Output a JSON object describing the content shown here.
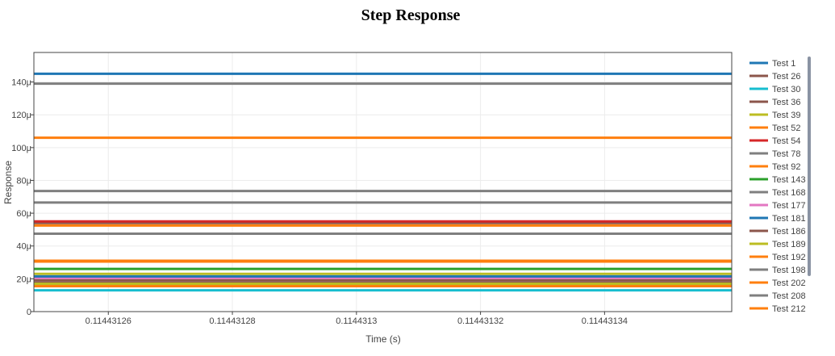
{
  "chart_data": {
    "type": "line",
    "title": "Step Response",
    "xlabel": "Time (s)",
    "ylabel": "Response",
    "xlim": [
      0.114431248,
      0.1144313605
    ],
    "ylim": [
      0,
      0.000158
    ],
    "x_ticks": [
      {
        "value": 0.11443126,
        "label": "0.11443126"
      },
      {
        "value": 0.11443128,
        "label": "0.11443128"
      },
      {
        "value": 0.1144313,
        "label": "0.1144313"
      },
      {
        "value": 0.11443132,
        "label": "0.11443132"
      },
      {
        "value": 0.11443134,
        "label": "0.11443134"
      }
    ],
    "y_ticks": [
      {
        "value": 0,
        "label": "0"
      },
      {
        "value": 2e-05,
        "label": "20μ"
      },
      {
        "value": 4e-05,
        "label": "40μ"
      },
      {
        "value": 6e-05,
        "label": "60μ"
      },
      {
        "value": 8e-05,
        "label": "80μ"
      },
      {
        "value": 0.0001,
        "label": "100μ"
      },
      {
        "value": 0.00012,
        "label": "120μ"
      },
      {
        "value": 0.00014,
        "label": "140μ"
      }
    ],
    "grid": true,
    "legend_position": "right",
    "series": [
      {
        "name": "Test 1",
        "color": "#1f77b4",
        "x": [
          0.114431248,
          0.1144313605
        ],
        "y": [
          0.000145,
          0.000145
        ]
      },
      {
        "name": "Test 26",
        "color": "#8c564b",
        "x": [
          0.114431248,
          0.1144313605
        ],
        "y": [
          1.75e-05,
          1.75e-05
        ]
      },
      {
        "name": "Test 30",
        "color": "#17becf",
        "x": [
          0.114431248,
          0.1144313605
        ],
        "y": [
          1.3e-05,
          1.3e-05
        ]
      },
      {
        "name": "Test 36",
        "color": "#8c564b",
        "x": [
          0.114431248,
          0.1144313605
        ],
        "y": [
          5.4e-05,
          5.4e-05
        ]
      },
      {
        "name": "Test 39",
        "color": "#bcbd22",
        "x": [
          0.114431248,
          0.1144313605
        ],
        "y": [
          2.3e-05,
          2.3e-05
        ]
      },
      {
        "name": "Test 52",
        "color": "#ff7f0e",
        "x": [
          0.114431248,
          0.1144313605
        ],
        "y": [
          1.55e-05,
          1.55e-05
        ]
      },
      {
        "name": "Test 54",
        "color": "#d62728",
        "x": [
          0.114431248,
          0.1144313605
        ],
        "y": [
          5.5e-05,
          5.5e-05
        ]
      },
      {
        "name": "Test 78",
        "color": "#7f7f7f",
        "x": [
          0.114431248,
          0.1144313605
        ],
        "y": [
          6.65e-05,
          6.65e-05
        ]
      },
      {
        "name": "Test 92",
        "color": "#ff7f0e",
        "x": [
          0.114431248,
          0.1144313605
        ],
        "y": [
          0.000106,
          0.000106
        ]
      },
      {
        "name": "Test 143",
        "color": "#2ca02c",
        "x": [
          0.114431248,
          0.1144313605
        ],
        "y": [
          2.6e-05,
          2.6e-05
        ]
      },
      {
        "name": "Test 168",
        "color": "#7f7f7f",
        "x": [
          0.114431248,
          0.1144313605
        ],
        "y": [
          0.000139,
          0.000139
        ]
      },
      {
        "name": "Test 177",
        "color": "#e377c2",
        "x": [
          0.114431248,
          0.1144313605
        ],
        "y": [
          2.05e-05,
          2.05e-05
        ]
      },
      {
        "name": "Test 181",
        "color": "#1f77b4",
        "x": [
          0.114431248,
          0.1144313605
        ],
        "y": [
          2.15e-05,
          2.15e-05
        ]
      },
      {
        "name": "Test 186",
        "color": "#8c564b",
        "x": [
          0.114431248,
          0.1144313605
        ],
        "y": [
          1.9e-05,
          1.9e-05
        ]
      },
      {
        "name": "Test 189",
        "color": "#bcbd22",
        "x": [
          0.114431248,
          0.1144313605
        ],
        "y": [
          1.7e-05,
          1.7e-05
        ]
      },
      {
        "name": "Test 192",
        "color": "#ff7f0e",
        "x": [
          0.114431248,
          0.1144313605
        ],
        "y": [
          3.1e-05,
          3.1e-05
        ]
      },
      {
        "name": "Test 198",
        "color": "#7f7f7f",
        "x": [
          0.114431248,
          0.1144313605
        ],
        "y": [
          7.35e-05,
          7.35e-05
        ]
      },
      {
        "name": "Test 202",
        "color": "#ff7f0e",
        "x": [
          0.114431248,
          0.1144313605
        ],
        "y": [
          5.25e-05,
          5.25e-05
        ]
      },
      {
        "name": "Test 208",
        "color": "#7f7f7f",
        "x": [
          0.114431248,
          0.1144313605
        ],
        "y": [
          4.75e-05,
          4.75e-05
        ]
      },
      {
        "name": "Test 212",
        "color": "#ff7f0e",
        "x": [
          0.114431248,
          0.1144313605
        ],
        "y": [
          3.05e-05,
          3.05e-05
        ]
      }
    ]
  }
}
